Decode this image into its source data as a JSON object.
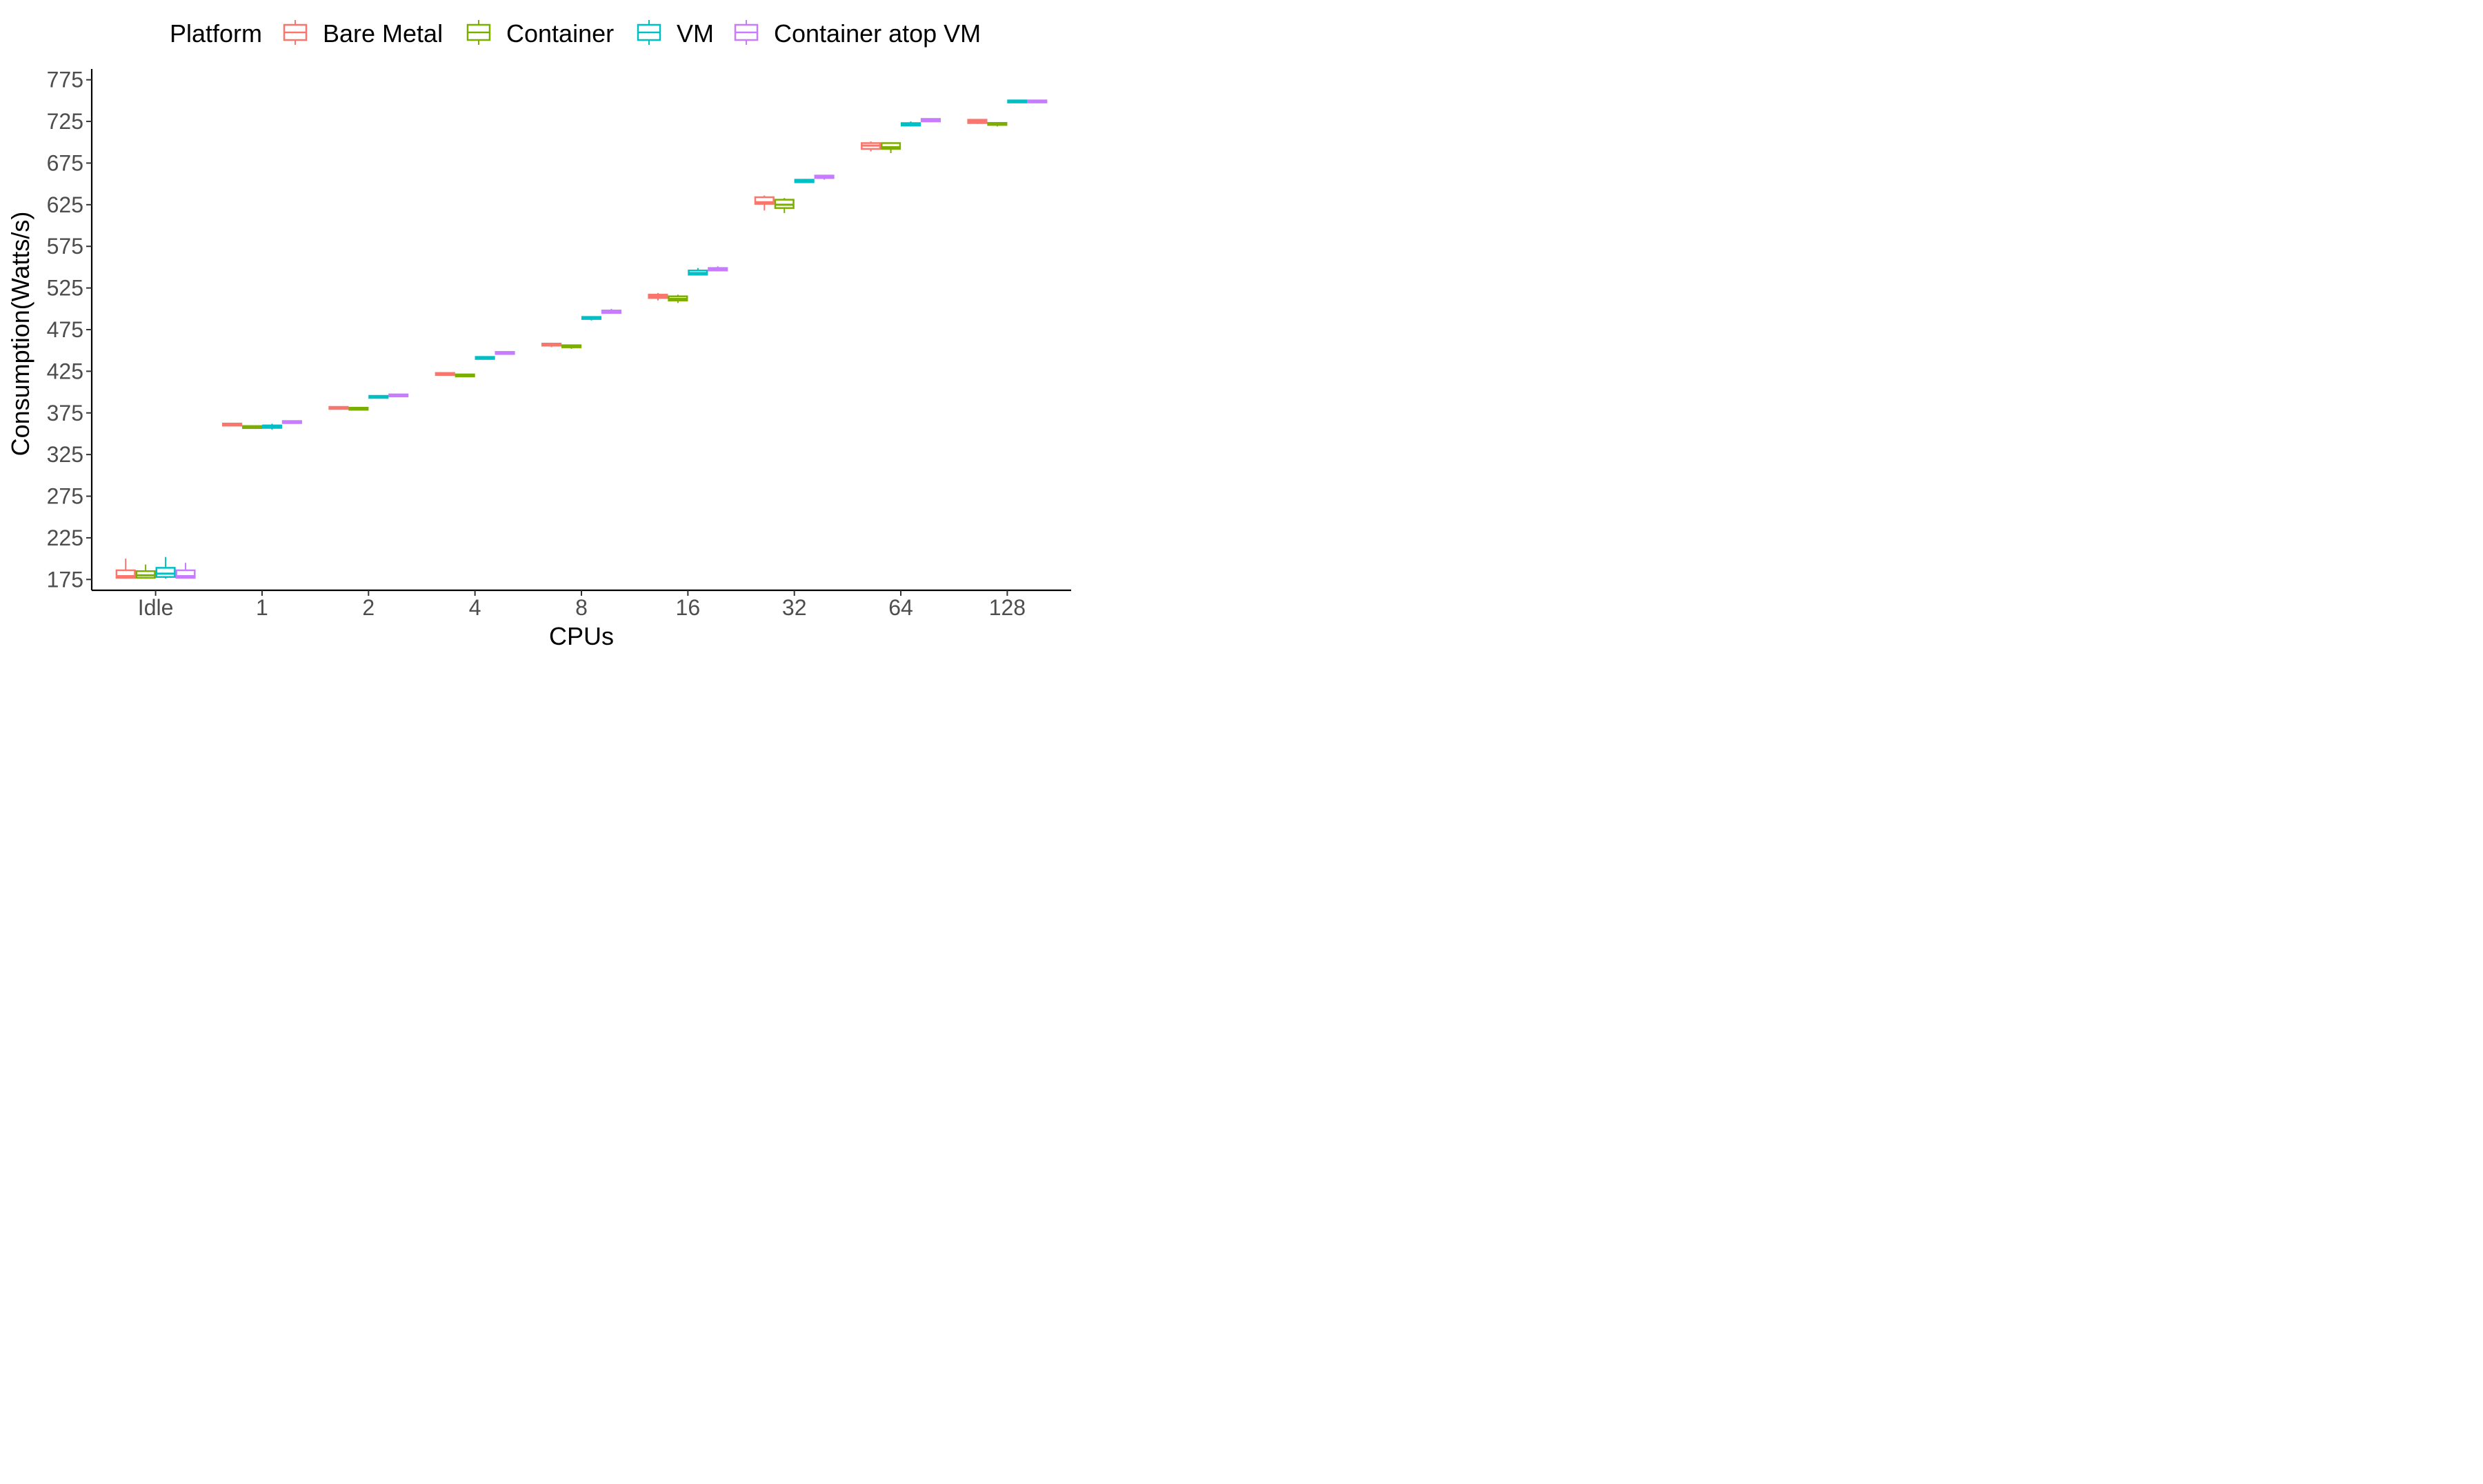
{
  "chart_data": {
    "type": "boxplot",
    "xlabel": "CPUs",
    "ylabel": "Consumption(Watts/s)",
    "categories": [
      "Idle",
      "1",
      "2",
      "4",
      "8",
      "16",
      "32",
      "64",
      "128"
    ],
    "ylim": [
      162,
      788
    ],
    "yticks": [
      175,
      225,
      275,
      325,
      375,
      425,
      475,
      525,
      575,
      625,
      675,
      725,
      775
    ],
    "grid": false,
    "legend": {
      "title": "Platform",
      "position": "top"
    },
    "series": [
      {
        "name": "Bare Metal",
        "color": "#F8766D",
        "boxes": [
          {
            "low": 176,
            "q1": 177,
            "median": 179,
            "q3": 186,
            "high": 200
          },
          {
            "low": 359,
            "q1": 360,
            "median": 361,
            "q3": 362,
            "high": 363
          },
          {
            "low": 379,
            "q1": 380,
            "median": 381,
            "q3": 382,
            "high": 383
          },
          {
            "low": 420,
            "q1": 421,
            "median": 422,
            "q3": 422.5,
            "high": 423
          },
          {
            "low": 454,
            "q1": 456,
            "median": 457,
            "q3": 458,
            "high": 459
          },
          {
            "low": 510,
            "q1": 513,
            "median": 515,
            "q3": 517,
            "high": 519
          },
          {
            "low": 618,
            "q1": 626,
            "median": 628,
            "q3": 634,
            "high": 636
          },
          {
            "low": 689,
            "q1": 692,
            "median": 696,
            "q3": 699,
            "high": 701
          },
          {
            "low": 722,
            "q1": 723,
            "median": 725,
            "q3": 727,
            "high": 728
          }
        ]
      },
      {
        "name": "Container",
        "color": "#7CAE00",
        "boxes": [
          {
            "low": 176,
            "q1": 177,
            "median": 180,
            "q3": 185,
            "high": 193
          },
          {
            "low": 356,
            "q1": 357,
            "median": 358,
            "q3": 359,
            "high": 360
          },
          {
            "low": 378,
            "q1": 379,
            "median": 380,
            "q3": 381,
            "high": 382
          },
          {
            "low": 418,
            "q1": 419,
            "median": 420,
            "q3": 421,
            "high": 422
          },
          {
            "low": 452,
            "q1": 454,
            "median": 455,
            "q3": 456,
            "high": 457
          },
          {
            "low": 507,
            "q1": 510,
            "median": 512,
            "q3": 515,
            "high": 517
          },
          {
            "low": 615,
            "q1": 621,
            "median": 625,
            "q3": 631,
            "high": 633
          },
          {
            "low": 687,
            "q1": 692,
            "median": 694,
            "q3": 699,
            "high": 700
          },
          {
            "low": 719,
            "q1": 721,
            "median": 722,
            "q3": 723,
            "high": 724
          }
        ]
      },
      {
        "name": "VM",
        "color": "#00BFC4",
        "boxes": [
          {
            "low": 176,
            "q1": 178,
            "median": 182,
            "q3": 189,
            "high": 202
          },
          {
            "low": 355,
            "q1": 357,
            "median": 358,
            "q3": 360,
            "high": 362
          },
          {
            "low": 393,
            "q1": 393.5,
            "median": 394,
            "q3": 395,
            "high": 396
          },
          {
            "low": 439,
            "q1": 440,
            "median": 441,
            "q3": 442,
            "high": 442.5
          },
          {
            "low": 486,
            "q1": 488,
            "median": 489,
            "q3": 490,
            "high": 491
          },
          {
            "low": 540,
            "q1": 541,
            "median": 543,
            "q3": 546,
            "high": 549
          },
          {
            "low": 651,
            "q1": 652,
            "median": 653,
            "q3": 655,
            "high": 656
          },
          {
            "low": 719,
            "q1": 720,
            "median": 721,
            "q3": 723,
            "high": 725
          },
          {
            "low": 747,
            "q1": 748,
            "median": 749,
            "q3": 750,
            "high": 751
          }
        ]
      },
      {
        "name": "Container atop VM",
        "color": "#C77CFF",
        "boxes": [
          {
            "low": 176,
            "q1": 177,
            "median": 179,
            "q3": 186,
            "high": 195
          },
          {
            "low": 362,
            "q1": 363,
            "median": 364,
            "q3": 365,
            "high": 366
          },
          {
            "low": 394,
            "q1": 395,
            "median": 396,
            "q3": 397,
            "high": 398
          },
          {
            "low": 445,
            "q1": 446,
            "median": 447,
            "q3": 448,
            "high": 449
          },
          {
            "low": 494,
            "q1": 495,
            "median": 496,
            "q3": 498,
            "high": 500
          },
          {
            "low": 545,
            "q1": 546,
            "median": 547,
            "q3": 549,
            "high": 551
          },
          {
            "low": 655,
            "q1": 657,
            "median": 658,
            "q3": 660,
            "high": 661
          },
          {
            "low": 724,
            "q1": 725,
            "median": 726,
            "q3": 728,
            "high": 729
          },
          {
            "low": 747,
            "q1": 748,
            "median": 749,
            "q3": 750,
            "high": 751
          }
        ]
      }
    ]
  }
}
